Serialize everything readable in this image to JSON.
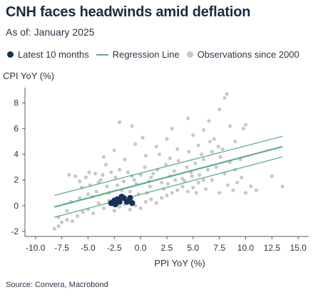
{
  "header": {
    "title": "CNH faces headwinds amid deflation",
    "subtitle": "As of: January 2025"
  },
  "source": "Source: Convera, Macrobond",
  "colors": {
    "latest": "#17315a",
    "regression": "#5fae8a",
    "observations": "#c8c8c8",
    "axis": "#5a5a5a"
  },
  "chart_data": {
    "type": "scatter",
    "xlabel": "PPI YoY (%)",
    "ylabel": "CPI YoY (%)",
    "xlim": [
      -11,
      16
    ],
    "ylim": [
      -2.4,
      9.2
    ],
    "xticks": [
      "-10.0",
      "-7.5",
      "-5.0",
      "-2.5",
      "0.0",
      "2.5",
      "5.0",
      "7.5",
      "10.0",
      "12.5",
      "15.0"
    ],
    "xtick_values": [
      -10,
      -7.5,
      -5,
      -2.5,
      0,
      2.5,
      5,
      7.5,
      10,
      12.5,
      15
    ],
    "yticks": [
      "-2",
      "0",
      "2",
      "4",
      "6",
      "8"
    ],
    "ytick_values": [
      -2,
      0,
      2,
      4,
      6,
      8
    ],
    "grid": false,
    "legend": [
      {
        "label": "Latest 10 months",
        "marker": "dot",
        "color": "#17315a"
      },
      {
        "label": "Regression Line",
        "marker": "line",
        "color": "#5fae8a"
      },
      {
        "label": "Observations since 2000",
        "marker": "dot",
        "color": "#c8c8c8"
      }
    ],
    "legend_position": "top",
    "regression": {
      "fit": [
        [
          -8.2,
          -0.1
        ],
        [
          13.5,
          4.6
        ]
      ],
      "upper": [
        [
          -8.2,
          0.8
        ],
        [
          13.5,
          5.4
        ]
      ],
      "lower": [
        [
          -8.2,
          -0.9
        ],
        [
          13.5,
          3.8
        ]
      ]
    },
    "series": [
      {
        "name": "Latest 10 months",
        "points": [
          [
            -2.8,
            0.2
          ],
          [
            -2.5,
            0.4
          ],
          [
            -2.4,
            0.1
          ],
          [
            -2.2,
            0.5
          ],
          [
            -2.0,
            0.3
          ],
          [
            -1.8,
            0.7
          ],
          [
            -1.6,
            0.6
          ],
          [
            -1.3,
            0.3
          ],
          [
            -1.0,
            0.6
          ],
          [
            -0.8,
            0.2
          ]
        ]
      },
      {
        "name": "Observations since 2000",
        "points": [
          [
            -8.2,
            -1.8
          ],
          [
            -7.8,
            -1.6
          ],
          [
            -7.5,
            -1.3
          ],
          [
            -7.0,
            -1.1
          ],
          [
            -6.5,
            -1.2
          ],
          [
            -6.0,
            -0.8
          ],
          [
            -5.5,
            -0.5
          ],
          [
            -5.0,
            -0.3
          ],
          [
            -4.5,
            -0.6
          ],
          [
            -4.0,
            0.2
          ],
          [
            -3.5,
            -0.2
          ],
          [
            -3.0,
            0.4
          ],
          [
            -2.5,
            -0.4
          ],
          [
            -2.0,
            -0.1
          ],
          [
            -1.5,
            0.1
          ],
          [
            -1.0,
            -0.3
          ],
          [
            -0.5,
            0.0
          ],
          [
            0.0,
            -0.2
          ],
          [
            0.5,
            0.3
          ],
          [
            1.0,
            0.5
          ],
          [
            1.5,
            0.2
          ],
          [
            2.0,
            0.6
          ],
          [
            2.5,
            0.8
          ],
          [
            3.0,
            1.0
          ],
          [
            3.5,
            1.2
          ],
          [
            4.0,
            1.5
          ],
          [
            4.5,
            1.1
          ],
          [
            5.0,
            1.4
          ],
          [
            5.5,
            1.8
          ],
          [
            6.0,
            2.0
          ],
          [
            -6.8,
            2.4
          ],
          [
            -6.2,
            2.3
          ],
          [
            -5.8,
            1.9
          ],
          [
            -5.2,
            2.2
          ],
          [
            -4.8,
            1.6
          ],
          [
            -4.3,
            2.5
          ],
          [
            -4.0,
            1.8
          ],
          [
            -3.6,
            2.4
          ],
          [
            -3.2,
            1.5
          ],
          [
            -2.8,
            2.6
          ],
          [
            -2.4,
            2.2
          ],
          [
            -2.0,
            2.8
          ],
          [
            -1.6,
            1.9
          ],
          [
            -1.2,
            2.6
          ],
          [
            -0.8,
            2.3
          ],
          [
            -0.4,
            1.7
          ],
          [
            0.0,
            2.4
          ],
          [
            0.4,
            3.0
          ],
          [
            0.8,
            1.9
          ],
          [
            1.2,
            2.5
          ],
          [
            1.6,
            2.8
          ],
          [
            2.0,
            1.8
          ],
          [
            2.4,
            3.2
          ],
          [
            2.8,
            2.3
          ],
          [
            3.2,
            2.7
          ],
          [
            3.6,
            3.5
          ],
          [
            4.0,
            2.1
          ],
          [
            4.4,
            3.0
          ],
          [
            4.8,
            2.6
          ],
          [
            5.2,
            3.3
          ],
          [
            5.6,
            2.4
          ],
          [
            6.0,
            3.6
          ],
          [
            6.4,
            2.8
          ],
          [
            6.8,
            4.2
          ],
          [
            7.2,
            3.0
          ],
          [
            7.6,
            3.8
          ],
          [
            8.0,
            2.5
          ],
          [
            8.5,
            3.4
          ],
          [
            9.0,
            2.8
          ],
          [
            9.5,
            3.6
          ],
          [
            -3.5,
            3.8
          ],
          [
            -2.5,
            4.3
          ],
          [
            -1.5,
            3.6
          ],
          [
            -0.5,
            4.8
          ],
          [
            0.5,
            3.9
          ],
          [
            1.5,
            4.6
          ],
          [
            2.5,
            5.2
          ],
          [
            3.5,
            4.4
          ],
          [
            4.5,
            6.8
          ],
          [
            5.0,
            5.5
          ],
          [
            5.5,
            4.7
          ],
          [
            6.0,
            5.9
          ],
          [
            6.5,
            6.6
          ],
          [
            7.0,
            5.2
          ],
          [
            7.5,
            7.5
          ],
          [
            8.0,
            8.4
          ],
          [
            8.2,
            8.7
          ],
          [
            8.5,
            6.2
          ],
          [
            9.0,
            5.0
          ],
          [
            9.8,
            6.0
          ],
          [
            10.0,
            6.3
          ],
          [
            -2.0,
            6.5
          ],
          [
            0.2,
            5.3
          ],
          [
            3.0,
            6.0
          ],
          [
            -0.8,
            6.2
          ],
          [
            7.8,
            4.4
          ],
          [
            10.5,
            1.5
          ],
          [
            11.0,
            1.2
          ],
          [
            12.5,
            2.3
          ],
          [
            13.5,
            1.5
          ],
          [
            10.0,
            1.0
          ],
          [
            9.2,
            1.8
          ],
          [
            8.8,
            1.2
          ],
          [
            7.5,
            1.0
          ],
          [
            6.8,
            2.0
          ],
          [
            4.2,
            1.9
          ],
          [
            2.2,
            1.3
          ],
          [
            0.6,
            1.0
          ],
          [
            -0.2,
            0.9
          ],
          [
            -1.8,
            1.2
          ],
          [
            -3.0,
            1.0
          ],
          [
            -4.2,
            1.1
          ],
          [
            -5.0,
            0.9
          ],
          [
            -5.8,
            0.6
          ],
          [
            -6.6,
            0.3
          ],
          [
            -7.0,
            -0.4
          ],
          [
            -7.8,
            -0.9
          ],
          [
            -5.6,
            1.4
          ],
          [
            -4.6,
            0.7
          ],
          [
            1.8,
            4.0
          ],
          [
            2.8,
            3.7
          ],
          [
            4.6,
            4.2
          ],
          [
            5.8,
            4.0
          ],
          [
            6.6,
            5.0
          ],
          [
            7.4,
            4.6
          ],
          [
            3.3,
            2.0
          ],
          [
            1.0,
            2.2
          ],
          [
            -0.6,
            2.0
          ],
          [
            -2.2,
            1.6
          ],
          [
            -3.8,
            2.0
          ],
          [
            5.3,
            1.0
          ],
          [
            6.2,
            1.3
          ],
          [
            8.3,
            1.6
          ],
          [
            9.6,
            2.2
          ],
          [
            -1.0,
            1.1
          ],
          [
            0.9,
            1.5
          ],
          [
            2.6,
            1.7
          ],
          [
            4.9,
            2.3
          ],
          [
            -4.9,
            2.6
          ],
          [
            -3.3,
            3.2
          ]
        ]
      }
    ]
  }
}
